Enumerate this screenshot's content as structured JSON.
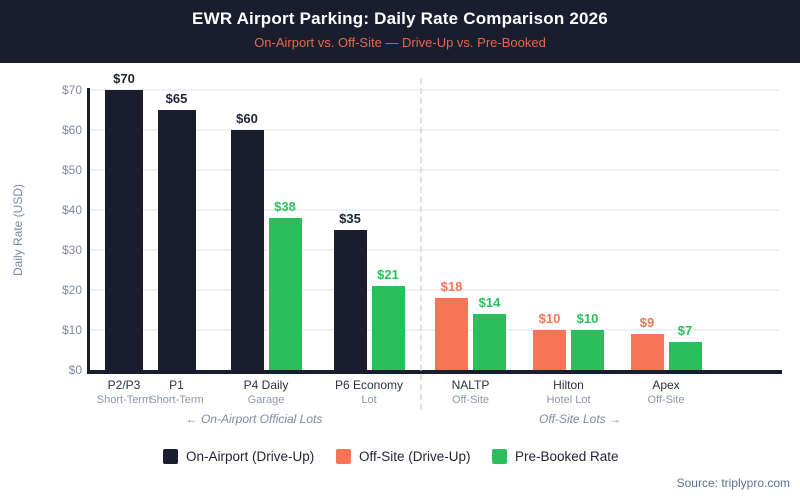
{
  "header": {
    "title": "EWR Airport Parking: Daily Rate Comparison 2026",
    "subtitle": "On-Airport vs. Off-Site — Drive-Up vs. Pre-Booked"
  },
  "colors": {
    "header_bg": "#1a1d2e",
    "title": "#ffffff",
    "subtitle": "#e8684c",
    "grid": "#edf1f6",
    "axis_text": "#7d89a2",
    "x_label": "#2a3044",
    "x_sublabel": "#8d97ac",
    "annotation": "#7e8aa3",
    "source": "#5d6f93"
  },
  "chart_data": {
    "type": "bar",
    "title": "EWR Airport Parking: Daily Rate Comparison 2026",
    "subtitle": "On-Airport vs. Off-Site — Drive-Up vs. Pre-Booked",
    "ylabel": "Daily Rate (USD)",
    "ylim": [
      0,
      70
    ],
    "yticks": [
      0,
      10,
      20,
      30,
      40,
      50,
      60,
      70
    ],
    "ytick_labels": [
      "$0",
      "$10",
      "$20",
      "$30",
      "$40",
      "$50",
      "$60",
      "$70"
    ],
    "grid": true,
    "legend_position": "bottom",
    "series": [
      {
        "key": "onairport",
        "name": "On-Airport (Drive-Up)",
        "color": "#1a1d2e"
      },
      {
        "key": "offsite",
        "name": "Off-Site (Drive-Up)",
        "color": "#f87457"
      },
      {
        "key": "prebooked",
        "name": "Pre-Booked Rate",
        "color": "#2abf5c"
      }
    ],
    "groups": [
      {
        "name": "P2/P3",
        "sub": "Short-Term",
        "section": "on-airport",
        "bars": [
          {
            "series": "onairport",
            "value": 70,
            "label": "$70"
          }
        ]
      },
      {
        "name": "P1",
        "sub": "Short-Term",
        "section": "on-airport",
        "bars": [
          {
            "series": "onairport",
            "value": 65,
            "label": "$65"
          }
        ]
      },
      {
        "name": "P4 Daily",
        "sub": "Garage",
        "section": "on-airport",
        "bars": [
          {
            "series": "onairport",
            "value": 60,
            "label": "$60"
          },
          {
            "series": "prebooked",
            "value": 38,
            "label": "$38"
          }
        ]
      },
      {
        "name": "P6 Economy",
        "sub": "Lot",
        "section": "on-airport",
        "bars": [
          {
            "series": "onairport",
            "value": 35,
            "label": "$35"
          },
          {
            "series": "prebooked",
            "value": 21,
            "label": "$21"
          }
        ]
      },
      {
        "name": "NALTP",
        "sub": "Off-Site",
        "section": "off-site",
        "bars": [
          {
            "series": "offsite",
            "value": 18,
            "label": "$18"
          },
          {
            "series": "prebooked",
            "value": 14,
            "label": "$14"
          }
        ]
      },
      {
        "name": "Hilton",
        "sub": "Hotel Lot",
        "section": "off-site",
        "bars": [
          {
            "series": "offsite",
            "value": 10,
            "label": "$10"
          },
          {
            "series": "prebooked",
            "value": 10,
            "label": "$10"
          }
        ]
      },
      {
        "name": "Apex",
        "sub": "Off-Site",
        "section": "off-site",
        "bars": [
          {
            "series": "offsite",
            "value": 9,
            "label": "$9"
          },
          {
            "series": "prebooked",
            "value": 7,
            "label": "$7"
          }
        ]
      }
    ],
    "annotations": [
      {
        "text": "← On-Airport Official Lots",
        "side": "left"
      },
      {
        "text": "Off-Site Lots →",
        "side": "right"
      }
    ],
    "separator": {
      "style": "dashed",
      "between": [
        "P6 Economy",
        "NALTP"
      ]
    }
  },
  "legend": {
    "items": [
      {
        "label": "On-Airport (Drive-Up)",
        "series": "onairport"
      },
      {
        "label": "Off-Site (Drive-Up)",
        "series": "offsite"
      },
      {
        "label": "Pre-Booked Rate",
        "series": "prebooked"
      }
    ]
  },
  "footer": {
    "source": "Source: triplypro.com"
  }
}
